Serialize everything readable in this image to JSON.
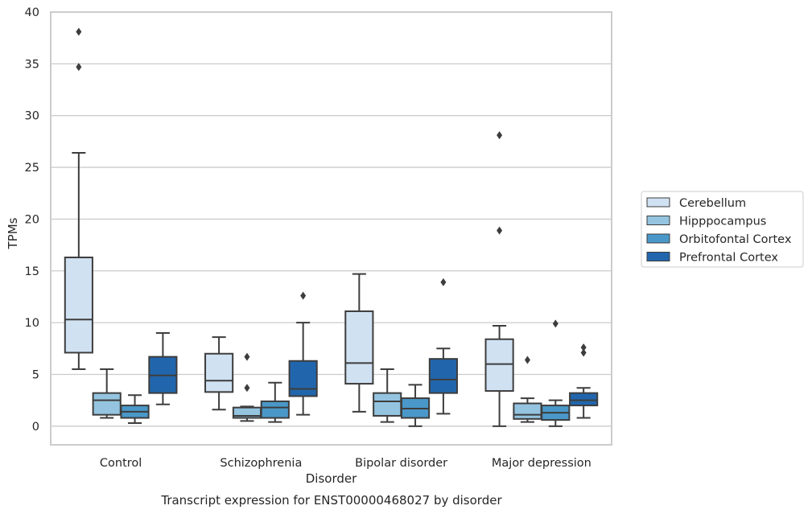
{
  "chart_data": {
    "type": "box",
    "xlabel": "Disorder",
    "ylabel": "TPMs",
    "caption": "Transcript expression for ENST00000468027 by disorder",
    "ylim": [
      -1.8,
      40
    ],
    "yticks": [
      0,
      5,
      10,
      15,
      20,
      25,
      30,
      35,
      40
    ],
    "grid": "horizontal",
    "legend_position": "right",
    "categories": [
      "Control",
      "Schizophrenia",
      "Bipolar disorder",
      "Major depression"
    ],
    "series": [
      {
        "name": "Cerebellum",
        "color": "#d0e1f2",
        "boxes": [
          {
            "whislo": 5.5,
            "q1": 7.1,
            "med": 10.3,
            "q3": 16.3,
            "whishi": 26.4,
            "fliers": [
              34.7,
              38.1
            ]
          },
          {
            "whislo": 1.6,
            "q1": 3.3,
            "med": 4.4,
            "q3": 7.0,
            "whishi": 8.6,
            "fliers": []
          },
          {
            "whislo": 1.4,
            "q1": 4.1,
            "med": 6.1,
            "q3": 11.1,
            "whishi": 14.7,
            "fliers": []
          },
          {
            "whislo": 0.0,
            "q1": 3.4,
            "med": 6.0,
            "q3": 8.4,
            "whishi": 9.7,
            "fliers": [
              18.9,
              28.1
            ]
          }
        ]
      },
      {
        "name": "Hipppocampus",
        "color": "#94c4df",
        "boxes": [
          {
            "whislo": 0.8,
            "q1": 1.1,
            "med": 2.5,
            "q3": 3.2,
            "whishi": 5.5,
            "fliers": []
          },
          {
            "whislo": 0.5,
            "q1": 0.8,
            "med": 1.0,
            "q3": 1.8,
            "whishi": 1.9,
            "fliers": [
              3.7,
              6.7
            ]
          },
          {
            "whislo": 0.4,
            "q1": 1.0,
            "med": 2.4,
            "q3": 3.2,
            "whishi": 5.5,
            "fliers": []
          },
          {
            "whislo": 0.4,
            "q1": 0.7,
            "med": 1.1,
            "q3": 2.2,
            "whishi": 2.7,
            "fliers": [
              6.4
            ]
          }
        ]
      },
      {
        "name": "Orbitofontal Cortex",
        "color": "#4a98c9",
        "boxes": [
          {
            "whislo": 0.3,
            "q1": 0.8,
            "med": 1.4,
            "q3": 2.0,
            "whishi": 3.0,
            "fliers": []
          },
          {
            "whislo": 0.4,
            "q1": 0.8,
            "med": 1.8,
            "q3": 2.4,
            "whishi": 4.2,
            "fliers": []
          },
          {
            "whislo": 0.0,
            "q1": 0.8,
            "med": 1.7,
            "q3": 2.7,
            "whishi": 4.0,
            "fliers": []
          },
          {
            "whislo": 0.0,
            "q1": 0.6,
            "med": 1.3,
            "q3": 2.0,
            "whishi": 2.5,
            "fliers": [
              9.9
            ]
          }
        ]
      },
      {
        "name": "Prefrontal Cortex",
        "color": "#2166ac",
        "boxes": [
          {
            "whislo": 2.1,
            "q1": 3.2,
            "med": 4.9,
            "q3": 6.7,
            "whishi": 9.0,
            "fliers": []
          },
          {
            "whislo": 1.1,
            "q1": 2.9,
            "med": 3.6,
            "q3": 6.3,
            "whishi": 10.0,
            "fliers": [
              12.6
            ]
          },
          {
            "whislo": 1.2,
            "q1": 3.2,
            "med": 4.5,
            "q3": 6.5,
            "whishi": 7.5,
            "fliers": [
              13.9
            ]
          },
          {
            "whislo": 0.8,
            "q1": 2.0,
            "med": 2.5,
            "q3": 3.2,
            "whishi": 3.7,
            "fliers": [
              7.1,
              7.6
            ]
          }
        ]
      }
    ]
  }
}
